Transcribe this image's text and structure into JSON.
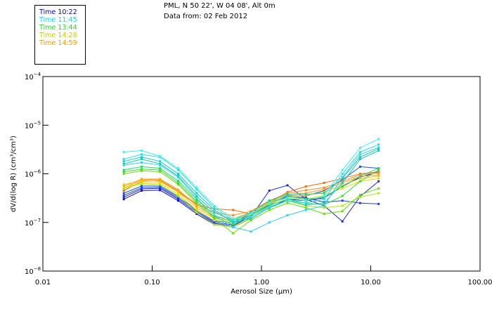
{
  "header": {
    "line1": "PML, N 50 22', W 04 08', Alt 0m",
    "line2": "Data from: 02 Feb 2012"
  },
  "legend": [
    {
      "label": "Time 10:22",
      "color": "#0000cc"
    },
    {
      "label": "Time 11:45",
      "color": "#00e0e0"
    },
    {
      "label": "Time 13:44",
      "color": "#22dd22"
    },
    {
      "label": "Time 14:28",
      "color": "#cccc00"
    },
    {
      "label": "Time 14:59",
      "color": "#ff9900"
    }
  ],
  "chart_data": {
    "type": "line",
    "title": "",
    "xlabel": "Aerosol Size (µm)",
    "ylabel": "dV/d(log R) (cm³/cm³)",
    "xscale": "log",
    "yscale": "log",
    "xlim": [
      0.01,
      100
    ],
    "ylim": [
      1e-08,
      0.0001
    ],
    "x_ticks": [
      {
        "value": 0.01,
        "label": "0.01"
      },
      {
        "value": 0.1,
        "label": "0.10"
      },
      {
        "value": 1,
        "label": "1.00"
      },
      {
        "value": 10,
        "label": "10.00"
      },
      {
        "value": 100,
        "label": "100.00"
      }
    ],
    "y_ticks": [
      {
        "value": 0.0001,
        "base": "10",
        "exp": "−4"
      },
      {
        "value": 1e-05,
        "base": "10",
        "exp": "−5"
      },
      {
        "value": 1e-06,
        "base": "10",
        "exp": "−6"
      },
      {
        "value": 1e-07,
        "base": "10",
        "exp": "−7"
      },
      {
        "value": 1e-08,
        "base": "10",
        "exp": "−8"
      }
    ],
    "x": [
      0.055,
      0.08,
      0.118,
      0.173,
      0.255,
      0.37,
      0.55,
      0.8,
      1.18,
      1.73,
      2.55,
      3.74,
      5.5,
      8.0,
      11.8
    ],
    "series": [
      {
        "name": "s1",
        "color": "#1a0fcf",
        "values": [
          3e-07,
          4.5e-07,
          4.6e-07,
          2.8e-07,
          1.5e-07,
          9e-08,
          8e-08,
          1.2e-07,
          2e-07,
          3e-07,
          2.8e-07,
          3.2e-07,
          5.5e-07,
          8.5e-07,
          1.1e-06
        ]
      },
      {
        "name": "s2",
        "color": "#1a28d8",
        "values": [
          3.3e-07,
          4.9e-07,
          5e-07,
          3e-07,
          1.6e-07,
          9.5e-08,
          8.5e-08,
          1.3e-07,
          4.5e-07,
          5.8e-07,
          3e-07,
          2.2e-07,
          1.05e-07,
          3.4e-07,
          7e-07
        ]
      },
      {
        "name": "s3",
        "color": "#1e40e0",
        "values": [
          3.6e-07,
          5.2e-07,
          5.3e-07,
          3.2e-07,
          1.7e-07,
          1e-07,
          9e-08,
          1.4e-07,
          2.3e-07,
          3.4e-07,
          3.2e-07,
          2.6e-07,
          2.8e-07,
          2.5e-07,
          2.4e-07
        ]
      },
      {
        "name": "s4",
        "color": "#1a50e6",
        "values": [
          4e-07,
          5.6e-07,
          5.6e-07,
          3.4e-07,
          1.8e-07,
          1.05e-07,
          1e-07,
          1.5e-07,
          2.5e-07,
          3.6e-07,
          3.5e-07,
          4.5e-07,
          7.5e-07,
          1.4e-06,
          1.3e-06
        ]
      },
      {
        "name": "s5",
        "color": "#f07010",
        "values": [
          4.5e-07,
          7e-07,
          7.2e-07,
          4.3e-07,
          2.3e-07,
          1.9e-07,
          1.8e-07,
          1.5e-07,
          2.5e-07,
          4.2e-07,
          5.5e-07,
          6.5e-07,
          8e-07,
          1e-06,
          1.1e-06
        ]
      },
      {
        "name": "s6",
        "color": "#ff8c1a",
        "values": [
          5e-07,
          7.5e-07,
          7.6e-07,
          4.5e-07,
          2.4e-07,
          1.6e-07,
          1.4e-07,
          1.7e-07,
          2.8e-07,
          4e-07,
          4.6e-07,
          5.2e-07,
          7e-07,
          9.5e-07,
          1.05e-06
        ]
      },
      {
        "name": "s7",
        "color": "#ffa020",
        "values": [
          5.5e-07,
          7.8e-07,
          7.8e-07,
          4.7e-07,
          2.2e-07,
          1.3e-07,
          1.2e-07,
          1.6e-07,
          2.7e-07,
          3.8e-07,
          4e-07,
          4.8e-07,
          6.5e-07,
          8.8e-07,
          9.5e-07
        ]
      },
      {
        "name": "s8",
        "color": "#ffc000",
        "values": [
          6e-07,
          7.2e-07,
          7e-07,
          4.2e-07,
          2e-07,
          1.2e-07,
          1.1e-07,
          1.5e-07,
          2.6e-07,
          3.5e-07,
          3.6e-07,
          4.2e-07,
          5.8e-07,
          8e-07,
          9e-07
        ]
      },
      {
        "name": "s9",
        "color": "#e0e000",
        "values": [
          5.2e-07,
          6.5e-07,
          6.4e-07,
          3.8e-07,
          1.8e-07,
          1.1e-07,
          1e-07,
          1.4e-07,
          2.4e-07,
          3.2e-07,
          3e-07,
          3.6e-07,
          5e-07,
          7e-07,
          8e-07
        ]
      },
      {
        "name": "s10",
        "color": "#aaee00",
        "values": [
          5e-07,
          6.2e-07,
          6e-07,
          3.5e-07,
          1.6e-07,
          9e-08,
          8e-08,
          1.2e-07,
          2e-07,
          2.8e-07,
          2.2e-07,
          2e-07,
          2.2e-07,
          3.3e-07,
          4e-07
        ]
      },
      {
        "name": "s11",
        "color": "#66e000",
        "values": [
          1e-06,
          1.15e-06,
          1.1e-06,
          6e-07,
          2.5e-07,
          1.2e-07,
          6e-08,
          1.1e-07,
          1.8e-07,
          2.5e-07,
          2e-07,
          1.5e-07,
          1.7e-07,
          3.7e-07,
          5e-07
        ]
      },
      {
        "name": "s12",
        "color": "#33dd33",
        "values": [
          1.1e-06,
          1.25e-06,
          1.2e-06,
          6.5e-07,
          2.7e-07,
          1.3e-07,
          9e-08,
          1.3e-07,
          2.2e-07,
          3e-07,
          2.5e-07,
          2.3e-07,
          3.5e-07,
          7e-07,
          1.2e-06
        ]
      },
      {
        "name": "s13",
        "color": "#22dd66",
        "values": [
          1.2e-06,
          1.4e-06,
          1.3e-06,
          7.2e-07,
          3e-07,
          1.4e-07,
          1e-07,
          1.4e-07,
          2.5e-07,
          3.5e-07,
          3e-07,
          3.3e-07,
          5.5e-07,
          9e-07,
          1.3e-06
        ]
      },
      {
        "name": "s14",
        "color": "#10d0a0",
        "values": [
          1.6e-06,
          2e-06,
          1.6e-06,
          9e-07,
          3.5e-07,
          1.6e-07,
          1.1e-07,
          1.6e-07,
          2.8e-07,
          3.8e-07,
          3.8e-07,
          4e-07,
          8e-07,
          2.2e-06,
          3.3e-06
        ]
      },
      {
        "name": "s15",
        "color": "#10c8d8",
        "values": [
          1.8e-06,
          2.2e-06,
          1.8e-06,
          1e-06,
          4e-07,
          1.8e-07,
          1e-07,
          1.2e-07,
          2e-07,
          2.8e-07,
          2.3e-07,
          2.5e-07,
          6.5e-07,
          2e-06,
          3e-06
        ]
      },
      {
        "name": "s16",
        "color": "#20e0e0",
        "values": [
          2e-06,
          2.5e-06,
          2.2e-06,
          1.2e-06,
          4.8e-07,
          2e-07,
          1.1e-07,
          1.3e-07,
          2.1e-07,
          2.8e-07,
          2.5e-07,
          3e-07,
          1e-06,
          2.8e-06,
          4e-06
        ]
      },
      {
        "name": "s17",
        "color": "#40f0f0",
        "values": [
          2.8e-06,
          3e-06,
          2.3e-06,
          1.3e-06,
          5.2e-07,
          2.2e-07,
          1.2e-07,
          1.5e-07,
          2.5e-07,
          3.2e-07,
          2.8e-07,
          3.5e-07,
          1.2e-06,
          3.4e-06,
          5.2e-06
        ]
      },
      {
        "name": "s18",
        "color": "#30d0f0",
        "values": [
          1.5e-06,
          1.7e-06,
          1.5e-06,
          8.5e-07,
          3.2e-07,
          1.4e-07,
          8e-08,
          6.5e-08,
          1e-07,
          1.4e-07,
          1.8e-07,
          2.2e-07,
          8.5e-07,
          2.5e-06,
          3.5e-06
        ]
      }
    ]
  }
}
